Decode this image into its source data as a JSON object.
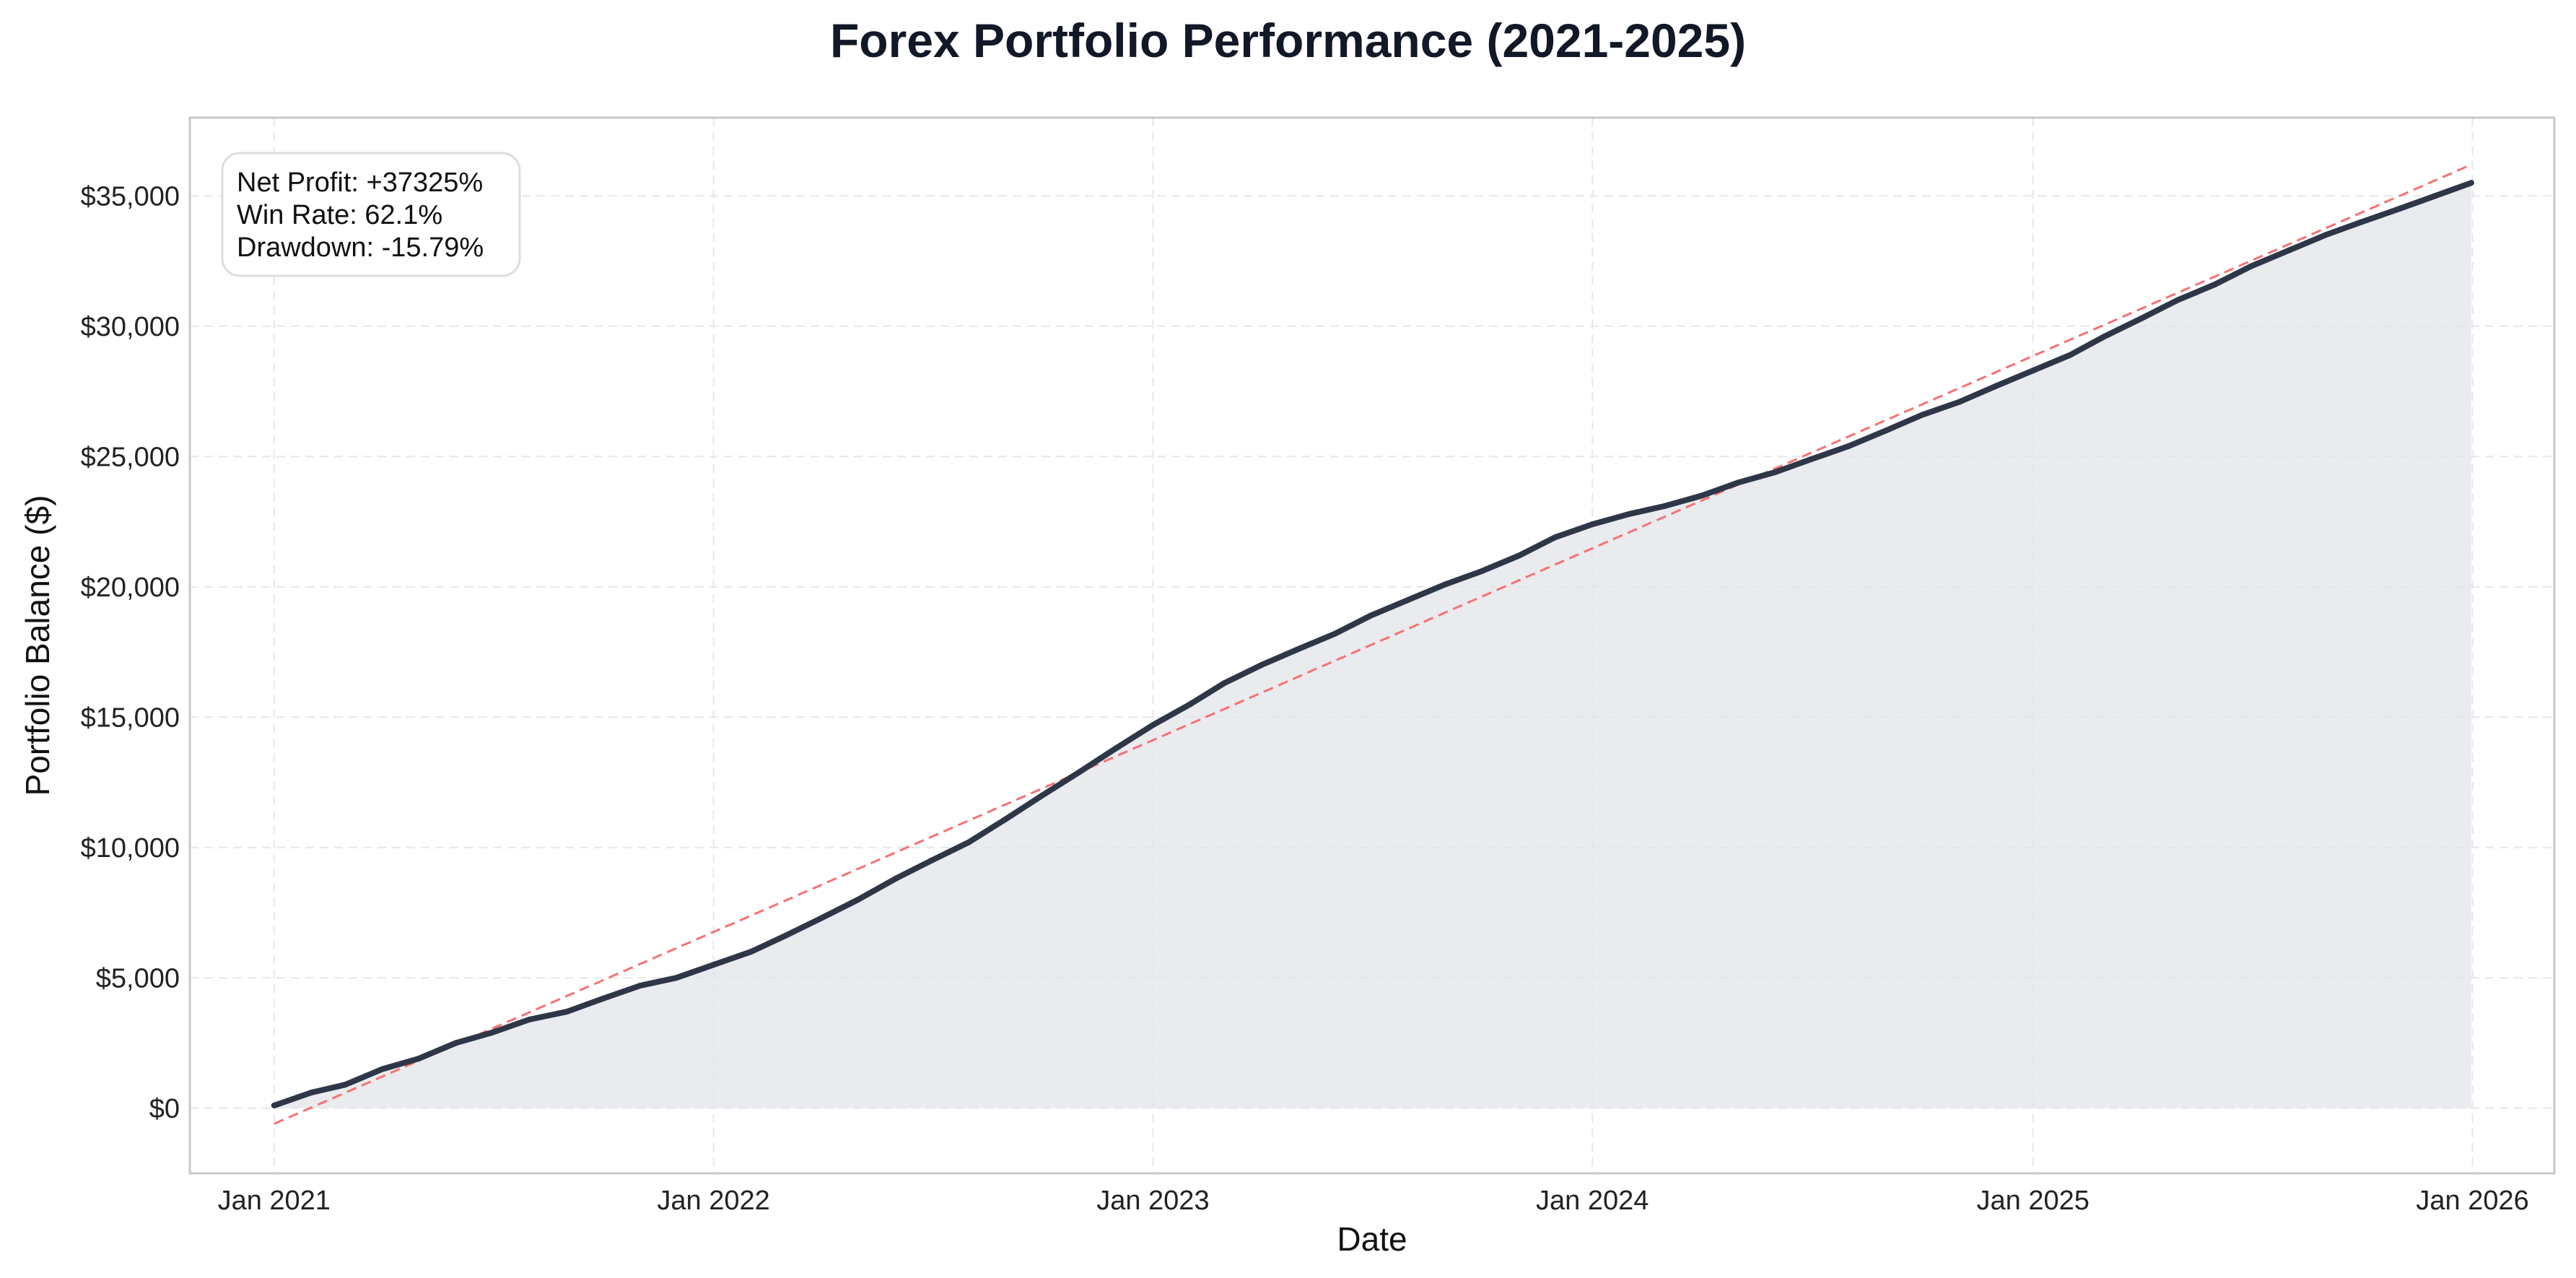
{
  "chart_data": {
    "type": "area",
    "title": "Forex Portfolio Performance (2021-2025)",
    "xlabel": "Date",
    "ylabel": "Portfolio Balance ($)",
    "x_ticks": [
      "Jan 2021",
      "Jan 2022",
      "Jan 2023",
      "Jan 2024",
      "Jan 2025",
      "Jan 2026"
    ],
    "y_ticks": [
      "$0",
      "$5,000",
      "$10,000",
      "$15,000",
      "$20,000",
      "$25,000",
      "$30,000",
      "$35,000"
    ],
    "xlim": [
      "2020-10-23",
      "2026-03-10"
    ],
    "ylim": [
      -2500,
      38000
    ],
    "grid": true,
    "stats_box": {
      "position": "top-left",
      "lines": [
        "Net Profit: +37325%",
        "Win Rate: 62.1%",
        "Drawdown: -15.79%"
      ]
    },
    "series": [
      {
        "color": "#2d3748",
        "fill": "#e2e4e8",
        "x": [
          "2021-01-01",
          "2021-02-01",
          "2021-03-01",
          "2021-04-01",
          "2021-05-01",
          "2021-06-01",
          "2021-07-01",
          "2021-08-01",
          "2021-09-01",
          "2021-10-01",
          "2021-11-01",
          "2021-12-01",
          "2022-01-01",
          "2022-02-01",
          "2022-03-01",
          "2022-04-01",
          "2022-05-01",
          "2022-06-01",
          "2022-07-01",
          "2022-08-01",
          "2022-09-01",
          "2022-10-01",
          "2022-11-01",
          "2022-12-01",
          "2023-01-01",
          "2023-02-01",
          "2023-03-01",
          "2023-04-01",
          "2023-05-01",
          "2023-06-01",
          "2023-07-01",
          "2023-08-01",
          "2023-09-01",
          "2023-10-01",
          "2023-11-01",
          "2023-12-01",
          "2024-01-01",
          "2024-02-01",
          "2024-03-01",
          "2024-04-01",
          "2024-05-01",
          "2024-06-01",
          "2024-07-01",
          "2024-08-01",
          "2024-09-01",
          "2024-10-01",
          "2024-11-01",
          "2024-12-01",
          "2025-01-01",
          "2025-02-01",
          "2025-03-01",
          "2025-04-01",
          "2025-05-01",
          "2025-06-01",
          "2025-07-01",
          "2025-08-01",
          "2025-09-01",
          "2025-10-01",
          "2025-11-01",
          "2025-12-01",
          "2025-12-31"
        ],
        "values": [
          100,
          600,
          900,
          1500,
          1900,
          2500,
          2900,
          3400,
          3700,
          4200,
          4700,
          5000,
          5500,
          6000,
          6600,
          7300,
          8000,
          8800,
          9500,
          10200,
          11100,
          12000,
          12900,
          13800,
          14700,
          15500,
          16300,
          17000,
          17600,
          18200,
          18900,
          19500,
          20100,
          20600,
          21200,
          21900,
          22400,
          22800,
          23100,
          23500,
          24000,
          24400,
          24900,
          25400,
          26000,
          26600,
          27100,
          27700,
          28300,
          28900,
          29600,
          30300,
          31000,
          31600,
          32300,
          32900,
          33500,
          34000,
          34500,
          35000,
          35500
        ]
      },
      {
        "type": "line",
        "style": "dashed",
        "color": "#f87171",
        "x": [
          "2021-01-01",
          "2025-12-31"
        ],
        "values": [
          -600,
          36200
        ]
      }
    ]
  }
}
